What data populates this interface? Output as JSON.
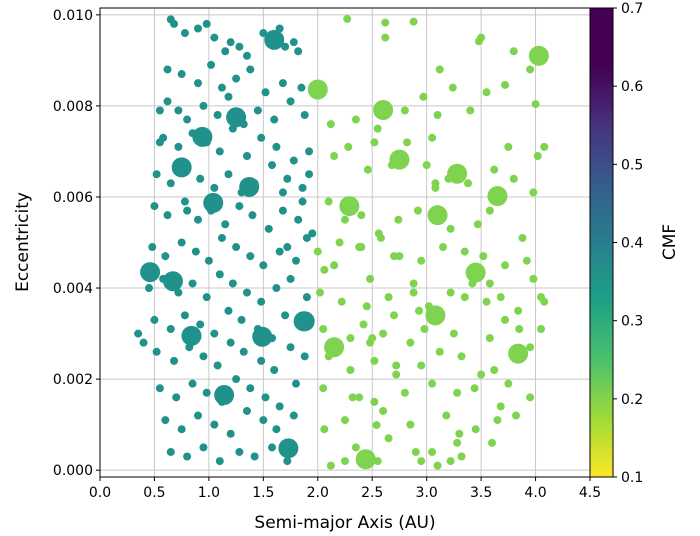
{
  "chart_data": {
    "type": "scatter",
    "xlabel": "Semi-major Axis (AU)",
    "ylabel": "Eccentricity",
    "xlim": [
      0.0,
      4.5
    ],
    "ylim": [
      -0.00015,
      0.01015
    ],
    "xticks": [
      "0.0",
      "0.5",
      "1.0",
      "1.5",
      "2.0",
      "2.5",
      "3.0",
      "3.5",
      "4.0",
      "4.5"
    ],
    "yticks": [
      "0.000",
      "0.002",
      "0.004",
      "0.006",
      "0.008",
      "0.010"
    ],
    "grid": true,
    "colorbar": {
      "label": "CMF",
      "colormap": "viridis",
      "range": [
        0.1,
        0.7
      ],
      "ticks": [
        "0.1",
        "0.2",
        "0.3",
        "0.4",
        "0.5",
        "0.6",
        "0.7"
      ]
    },
    "series": [
      {
        "color": "#7ed34f",
        "cmf": 0.2,
        "x": [
          2.06,
          2.32,
          2.48,
          2.52,
          2.62,
          2.7,
          2.88,
          2.93,
          3.08,
          3.12,
          3.35,
          3.44,
          3.5,
          3.58,
          3.62,
          3.75,
          3.8,
          3.98,
          3.82,
          2.54,
          2.27,
          2.62,
          2.88,
          3.05,
          3.4,
          3.48,
          3.72,
          4.0,
          2.12,
          2.35,
          2.55,
          2.8,
          2.97,
          3.1,
          3.24,
          3.55,
          3.8,
          3.95,
          2.15,
          2.28,
          2.46,
          2.68,
          2.82,
          3.08,
          3.2,
          3.38,
          3.62,
          3.98,
          2.1,
          2.25,
          2.4,
          2.56,
          2.74,
          2.92,
          3.22,
          3.47,
          3.58,
          3.88,
          2.0,
          2.2,
          2.38,
          2.58,
          2.75,
          2.95,
          3.15,
          3.35,
          3.52,
          3.72,
          3.92,
          2.02,
          2.22,
          2.48,
          2.65,
          2.88,
          3.02,
          3.22,
          3.42,
          3.68,
          3.84,
          4.08,
          2.05,
          2.3,
          2.42,
          2.6,
          2.85,
          2.98,
          3.25,
          3.58,
          3.72,
          4.05,
          2.1,
          2.3,
          2.52,
          2.72,
          2.95,
          3.12,
          3.32,
          3.5,
          3.75,
          2.05,
          2.38,
          2.52,
          2.8,
          3.05,
          3.28,
          3.68,
          3.95,
          2.06,
          2.25,
          2.6,
          2.85,
          3.18,
          3.45,
          3.65,
          2.35,
          2.65,
          3.05,
          3.3,
          3.6,
          2.42,
          2.95,
          3.28,
          2.12,
          2.55,
          3.1,
          3.32,
          2.25,
          2.9,
          3.22,
          2.72,
          3.55,
          3.85,
          3.95,
          4.05,
          4.02,
          4.08,
          3.0,
          2.4,
          2.15,
          2.45,
          2.7,
          2.5
        ],
        "y": [
          0.0044,
          0.0016,
          0.0028,
          0.0072,
          0.0095,
          0.0047,
          0.0039,
          0.0035,
          0.0063,
          0.0088,
          0.0038,
          0.0018,
          0.0095,
          0.0041,
          0.0022,
          0.0071,
          0.0064,
          0.0042,
          0.0012,
          0.00099,
          0.00991,
          0.00983,
          0.00985,
          0.0073,
          0.0079,
          0.00942,
          0.00846,
          0.00804,
          0.0076,
          0.0077,
          0.0075,
          0.0079,
          0.0082,
          0.0078,
          0.0084,
          0.0083,
          0.0092,
          0.0088,
          0.0069,
          0.0071,
          0.0066,
          0.0067,
          0.0072,
          0.0062,
          0.0064,
          0.0063,
          0.0066,
          0.0061,
          0.0059,
          0.0055,
          0.0056,
          0.0052,
          0.0055,
          0.0057,
          0.0053,
          0.0054,
          0.0057,
          0.0051,
          0.0048,
          0.005,
          0.0049,
          0.0051,
          0.0047,
          0.0046,
          0.0049,
          0.0048,
          0.0047,
          0.0045,
          0.0046,
          0.0039,
          0.0037,
          0.0042,
          0.0038,
          0.0041,
          0.0036,
          0.0039,
          0.0041,
          0.0038,
          0.0035,
          0.0037,
          0.0031,
          0.0029,
          0.0032,
          0.003,
          0.0028,
          0.0031,
          0.003,
          0.0029,
          0.0033,
          0.0031,
          0.0025,
          0.0022,
          0.0024,
          0.0021,
          0.0023,
          0.0026,
          0.0025,
          0.0021,
          0.0019,
          0.0018,
          0.0016,
          0.0015,
          0.0017,
          0.0019,
          0.0017,
          0.0014,
          0.0016,
          0.0009,
          0.0011,
          0.0013,
          0.001,
          0.0012,
          0.0009,
          0.0011,
          0.0005,
          0.0007,
          0.0004,
          0.0008,
          0.0006,
          0.0003,
          0.0002,
          0.0006,
          0.0001,
          0.0002,
          0.0001,
          0.0003,
          0.0002,
          0.0004,
          0.0002,
          0.0023,
          0.0037,
          0.0031,
          0.0027,
          0.0038,
          0.0069,
          0.0071,
          0.0067,
          0.0049,
          0.0045,
          0.0036,
          0.0034,
          0.0029
        ],
        "s": [
          4,
          4,
          4,
          4,
          4,
          4,
          4,
          4,
          4,
          4,
          4,
          4,
          4,
          4,
          4,
          4,
          4,
          4,
          4,
          4,
          4,
          4,
          4,
          4,
          4,
          4,
          4,
          4,
          4,
          4,
          4,
          4,
          4,
          4,
          4,
          4,
          4,
          4,
          4,
          4,
          4,
          4,
          4,
          4,
          4,
          4,
          4,
          4,
          4,
          4,
          4,
          4,
          4,
          4,
          4,
          4,
          4,
          4,
          4,
          4,
          4,
          4,
          4,
          4,
          4,
          4,
          4,
          4,
          4,
          4,
          4,
          4,
          4,
          4,
          4,
          4,
          4,
          4,
          4,
          4,
          4,
          4,
          4,
          4,
          4,
          4,
          4,
          4,
          4,
          4,
          4,
          4,
          4,
          4,
          4,
          4,
          4,
          4,
          4,
          4,
          4,
          4,
          4,
          4,
          4,
          4,
          4,
          4,
          4,
          4,
          4,
          4,
          4,
          4,
          4,
          4,
          4,
          4,
          4,
          4,
          4,
          4,
          4,
          4,
          4,
          4,
          4,
          4,
          4,
          4,
          4,
          4,
          4,
          4,
          4,
          4,
          4,
          4,
          4,
          4,
          4,
          4
        ]
      },
      {
        "color": "#7ed34f",
        "cmf": 0.2,
        "x": [
          2.0,
          2.6,
          2.75,
          3.28,
          3.65,
          4.03,
          2.29,
          3.1,
          3.45,
          3.08,
          2.15,
          3.84,
          2.44
        ],
        "y": [
          0.00836,
          0.00791,
          0.00682,
          0.00651,
          0.00602,
          0.0091,
          0.0058,
          0.0056,
          0.00434,
          0.0034,
          0.0027,
          0.00256,
          0.00024
        ],
        "s": [
          10,
          10,
          10,
          10,
          10,
          10,
          10,
          10,
          10,
          10,
          10,
          10,
          10
        ]
      },
      {
        "color": "#21918c",
        "cmf": 0.38,
        "x": [
          0.65,
          0.68,
          0.78,
          0.9,
          0.98,
          1.05,
          1.15,
          1.2,
          1.28,
          1.35,
          1.5,
          1.55,
          1.65,
          1.7,
          1.78,
          1.82,
          0.75,
          0.9,
          1.02,
          1.12,
          1.25,
          1.38,
          1.52,
          1.68,
          1.85,
          0.55,
          0.62,
          0.8,
          0.95,
          1.08,
          1.18,
          1.32,
          1.45,
          1.6,
          1.75,
          1.88,
          0.58,
          0.72,
          0.85,
          0.98,
          1.1,
          1.22,
          1.35,
          1.48,
          1.62,
          1.78,
          1.92,
          0.52,
          0.65,
          0.8,
          0.92,
          1.05,
          1.18,
          1.3,
          1.42,
          1.58,
          1.72,
          1.86,
          0.5,
          0.62,
          0.78,
          0.9,
          1.02,
          1.15,
          1.28,
          1.4,
          1.55,
          1.68,
          1.82,
          1.95,
          0.48,
          0.6,
          0.75,
          0.88,
          1.0,
          1.12,
          1.25,
          1.38,
          1.5,
          1.65,
          1.8,
          0.45,
          0.58,
          0.72,
          0.85,
          0.98,
          1.1,
          1.22,
          1.35,
          1.48,
          1.62,
          1.75,
          1.9,
          0.5,
          0.65,
          0.78,
          0.92,
          1.05,
          1.18,
          1.3,
          1.45,
          1.58,
          1.7,
          1.85,
          0.52,
          0.68,
          0.82,
          0.95,
          1.08,
          1.2,
          1.32,
          1.48,
          1.6,
          1.75,
          1.88,
          0.55,
          0.7,
          0.85,
          0.98,
          1.12,
          1.25,
          1.38,
          1.52,
          1.65,
          1.8,
          0.6,
          0.75,
          0.9,
          1.05,
          1.2,
          1.35,
          1.5,
          1.62,
          1.78,
          0.65,
          0.8,
          0.95,
          1.1,
          1.28,
          1.42,
          1.58,
          1.72,
          0.35,
          0.4,
          0.62,
          0.72,
          0.55,
          0.8,
          1.92,
          1.68,
          1.86,
          1.9,
          1.72
        ],
        "y": [
          0.0099,
          0.0098,
          0.0096,
          0.0097,
          0.0098,
          0.0095,
          0.0092,
          0.0094,
          0.0093,
          0.0091,
          0.0096,
          0.0095,
          0.0097,
          0.0093,
          0.0094,
          0.0092,
          0.0087,
          0.0085,
          0.0089,
          0.0084,
          0.0086,
          0.0088,
          0.0083,
          0.0085,
          0.0084,
          0.0079,
          0.0081,
          0.0077,
          0.008,
          0.0078,
          0.0082,
          0.0076,
          0.0079,
          0.0077,
          0.0081,
          0.0078,
          0.0073,
          0.0071,
          0.0074,
          0.0072,
          0.007,
          0.0075,
          0.0069,
          0.0073,
          0.0071,
          0.0068,
          0.007,
          0.0065,
          0.0063,
          0.0066,
          0.0064,
          0.0062,
          0.0065,
          0.0061,
          0.0063,
          0.0067,
          0.0064,
          0.0062,
          0.0058,
          0.0056,
          0.0059,
          0.0055,
          0.0057,
          0.0054,
          0.0058,
          0.0056,
          0.0053,
          0.0057,
          0.0055,
          0.0052,
          0.0049,
          0.0047,
          0.005,
          0.0048,
          0.0046,
          0.0051,
          0.0049,
          0.0047,
          0.0045,
          0.0048,
          0.0046,
          0.004,
          0.0042,
          0.0039,
          0.0041,
          0.0038,
          0.0043,
          0.0041,
          0.0039,
          0.0037,
          0.004,
          0.0042,
          0.0038,
          0.0033,
          0.0031,
          0.0034,
          0.0032,
          0.003,
          0.0035,
          0.0033,
          0.0031,
          0.0029,
          0.0034,
          0.0032,
          0.0026,
          0.0024,
          0.0027,
          0.0025,
          0.0023,
          0.0028,
          0.0026,
          0.0024,
          0.0022,
          0.0027,
          0.0025,
          0.0018,
          0.0016,
          0.0019,
          0.0017,
          0.0015,
          0.002,
          0.0018,
          0.0016,
          0.0014,
          0.0019,
          0.0011,
          0.0009,
          0.0012,
          0.001,
          0.0008,
          0.0013,
          0.0011,
          0.0009,
          0.0012,
          0.0004,
          0.0003,
          0.0005,
          0.0002,
          0.0004,
          0.0003,
          0.0005,
          0.0002,
          0.003,
          0.0028,
          0.0088,
          0.0079,
          0.0072,
          0.0057,
          0.0065,
          0.0061,
          0.0059,
          0.0051,
          0.0049
        ],
        "s": [
          4,
          4,
          4,
          4,
          4,
          4,
          4,
          4,
          4,
          4,
          4,
          4,
          4,
          4,
          4,
          4,
          4,
          4,
          4,
          4,
          4,
          4,
          4,
          4,
          4,
          4,
          4,
          4,
          4,
          4,
          4,
          4,
          4,
          4,
          4,
          4,
          4,
          4,
          4,
          4,
          4,
          4,
          4,
          4,
          4,
          4,
          4,
          4,
          4,
          4,
          4,
          4,
          4,
          4,
          4,
          4,
          4,
          4,
          4,
          4,
          4,
          4,
          4,
          4,
          4,
          4,
          4,
          4,
          4,
          4,
          4,
          4,
          4,
          4,
          4,
          4,
          4,
          4,
          4,
          4,
          4,
          4,
          4,
          4,
          4,
          4,
          4,
          4,
          4,
          4,
          4,
          4,
          4,
          4,
          4,
          4,
          4,
          4,
          4,
          4,
          4,
          4,
          4,
          4,
          4,
          4,
          4,
          4,
          4,
          4,
          4,
          4,
          4,
          4,
          4,
          4,
          4,
          4,
          4,
          4,
          4,
          4,
          4,
          4,
          4,
          4,
          4,
          4,
          4,
          4,
          4,
          4,
          4,
          4,
          4,
          4,
          4,
          4,
          4,
          4,
          4,
          4,
          4,
          4,
          4,
          4,
          4,
          4,
          4
        ]
      },
      {
        "color": "#21918c",
        "cmf": 0.38,
        "x": [
          1.6,
          1.25,
          0.94,
          0.75,
          1.37,
          1.04,
          0.46,
          0.67,
          1.87,
          0.84,
          1.49,
          1.88,
          1.14,
          1.73
        ],
        "y": [
          0.00945,
          0.00775,
          0.00732,
          0.00665,
          0.00622,
          0.00587,
          0.00435,
          0.00415,
          0.00327,
          0.00295,
          0.00293,
          0.00327,
          0.00165,
          0.00048
        ],
        "s": [
          10,
          10,
          10,
          10,
          10,
          10,
          10,
          10,
          10,
          10,
          10,
          10,
          10,
          10
        ]
      }
    ]
  }
}
